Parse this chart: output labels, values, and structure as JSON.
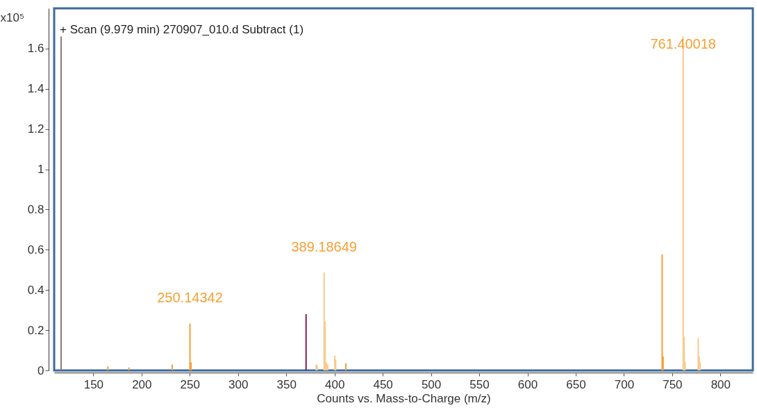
{
  "chart_data": {
    "type": "bar",
    "title": "+ Scan (9.979 min) 270907_010.d  Subtract (1)",
    "xlabel": "Counts vs. Mass-to-Charge (m/z)",
    "ylabel": "x10⁵",
    "x": [
      116.6,
      165,
      187,
      231.8,
      250.14342,
      251.2,
      370.5,
      381,
      382,
      389.18649,
      390.2,
      391.5,
      393,
      400.3,
      401.2,
      411.7,
      739.6,
      740.6,
      761.40018,
      762.4,
      763.4,
      777,
      778,
      779
    ],
    "values": [
      1.66,
      0.02,
      0.015,
      0.03,
      0.233,
      0.04,
      0.28,
      0.03,
      0.025,
      0.487,
      0.243,
      0.04,
      0.03,
      0.074,
      0.055,
      0.036,
      0.577,
      0.07,
      1.66,
      0.167,
      0.042,
      0.16,
      0.07,
      0.04
    ],
    "colors": [
      "#8c7b78",
      "#f5a033",
      "#f5a033",
      "#f5a033",
      "#f5a033",
      "#f5a033",
      "#8b1a4f",
      "#fac98a",
      "#fac98a",
      "#fac98a",
      "#fac98a",
      "#fac98a",
      "#fac98a",
      "#fac98a",
      "#fac98a",
      "#f5a033",
      "#f5a033",
      "#f5a033",
      "#fac98a",
      "#fac98a",
      "#fac98a",
      "#fac98a",
      "#fac98a",
      "#fac98a"
    ],
    "xlim": [
      113,
      830
    ],
    "xticks": [
      150,
      200,
      250,
      300,
      350,
      400,
      450,
      500,
      550,
      600,
      650,
      700,
      750,
      800
    ],
    "ylim": [
      0,
      1.8
    ],
    "yticks": [
      0,
      0.2,
      0.4,
      0.6,
      0.8,
      1,
      1.2,
      1.4,
      1.6
    ],
    "grid": false,
    "annotations": [
      {
        "text": "250.14342",
        "x": 250.14342,
        "y": 0.233
      },
      {
        "text": "389.18649",
        "x": 389.18649,
        "y": 0.487
      },
      {
        "text": "761.40018",
        "x": 761.40018,
        "y": 1.66
      }
    ]
  }
}
